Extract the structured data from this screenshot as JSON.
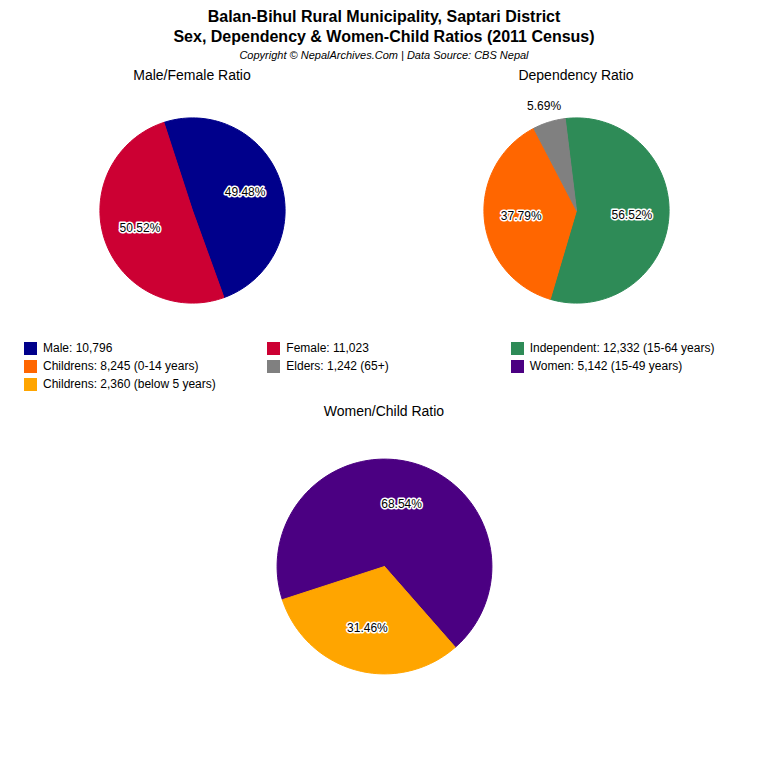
{
  "title": "Balan-Bihul Rural Municipality, Saptari District",
  "subtitle": "Sex, Dependency & Women-Child Ratios (2011 Census)",
  "caption": "Copyright © NepalArchives.Com | Data Source: CBS Nepal",
  "chart_data": [
    {
      "type": "pie",
      "title": "Male/Female Ratio",
      "categories": [
        "Male: 10,796",
        "Female: 11,023"
      ],
      "values": [
        49.48,
        50.52
      ],
      "value_labels": [
        "49.48%",
        "50.52%"
      ],
      "colors": [
        "#00008B",
        "#CC0033"
      ],
      "data_labels": true,
      "legend": "bottom"
    },
    {
      "type": "pie",
      "title": "Dependency Ratio",
      "categories": [
        "Independent: 12,332 (15-64 years)",
        "Childrens: 8,245 (0-14 years)",
        "Elders: 1,242 (65+)"
      ],
      "values": [
        56.52,
        37.79,
        5.69
      ],
      "value_labels": [
        "56.52%",
        "37.79%",
        "5.69%"
      ],
      "colors": [
        "#2E8B57",
        "#FF6600",
        "#808080"
      ],
      "data_labels": true,
      "legend": "bottom"
    },
    {
      "type": "pie",
      "title": "Women/Child Ratio",
      "categories": [
        "Women: 5,142 (15-49 years)",
        "Childrens: 2,360 (below 5 years)"
      ],
      "values": [
        68.54,
        31.46
      ],
      "value_labels": [
        "68.54%",
        "31.46%"
      ],
      "colors": [
        "#4B0082",
        "#FFA500"
      ],
      "data_labels": true,
      "legend": "bottom"
    }
  ]
}
